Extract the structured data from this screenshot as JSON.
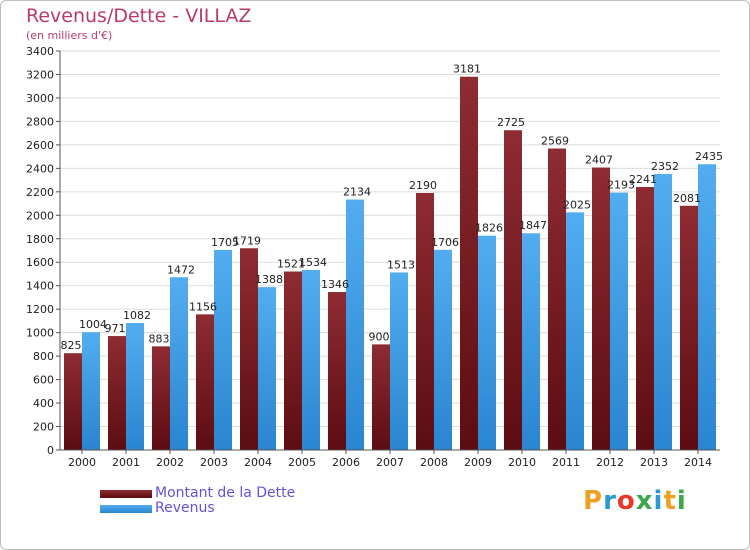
{
  "header": {
    "title": "Revenus/Dette - VILLAZ",
    "subtitle": "(en milliers d'€)"
  },
  "logo": {
    "letters": [
      "P",
      "r",
      "o",
      "x",
      "i",
      "t",
      "i"
    ],
    "colors": [
      "#f0a020",
      "#2a9ad6",
      "#e83a2a",
      "#3aa84a",
      "#2a9ad6",
      "#f0a020",
      "#3aa84a"
    ]
  },
  "chart_data": {
    "type": "bar",
    "title": "Revenus/Dette - VILLAZ",
    "subtitle": "(en milliers d'€)",
    "categories": [
      "2000",
      "2001",
      "2002",
      "2003",
      "2004",
      "2005",
      "2006",
      "2007",
      "2008",
      "2009",
      "2010",
      "2011",
      "2012",
      "2013",
      "2014"
    ],
    "series": [
      {
        "name": "Montant de la Dette",
        "color": "#7a1e24",
        "values": [
          825,
          971,
          883,
          1156,
          1719,
          1521,
          1346,
          900,
          2190,
          3181,
          2725,
          2569,
          2407,
          2241,
          2081
        ],
        "labels": [
          "825",
          "971",
          "883",
          "1156",
          "1719",
          "1521",
          "1346",
          "900",
          "2190",
          "3181",
          "2725",
          "2569",
          "2407",
          "2241",
          "2081"
        ]
      },
      {
        "name": "Revenus",
        "color": "#3d9ee6",
        "values": [
          1004,
          1082,
          1472,
          1705,
          1388,
          1534,
          2134,
          1513,
          1706,
          1826,
          1847,
          2025,
          2193,
          2352,
          2435
        ],
        "labels": [
          "1004",
          "1082",
          "1472",
          "1705",
          "1388",
          "1534",
          "2134",
          "1513",
          "1706",
          "1826",
          "1847",
          "2025",
          "2193",
          "2352",
          "2435"
        ]
      }
    ],
    "yticks": [
      "0",
      "200",
      "400",
      "600",
      "800",
      "1000",
      "1200",
      "1400",
      "1600",
      "1800",
      "2000",
      "2200",
      "2400",
      "2600",
      "2800",
      "3000",
      "3200",
      "3400"
    ],
    "ylim": [
      0,
      3400
    ],
    "grid": true,
    "legend": "bottom-left"
  }
}
